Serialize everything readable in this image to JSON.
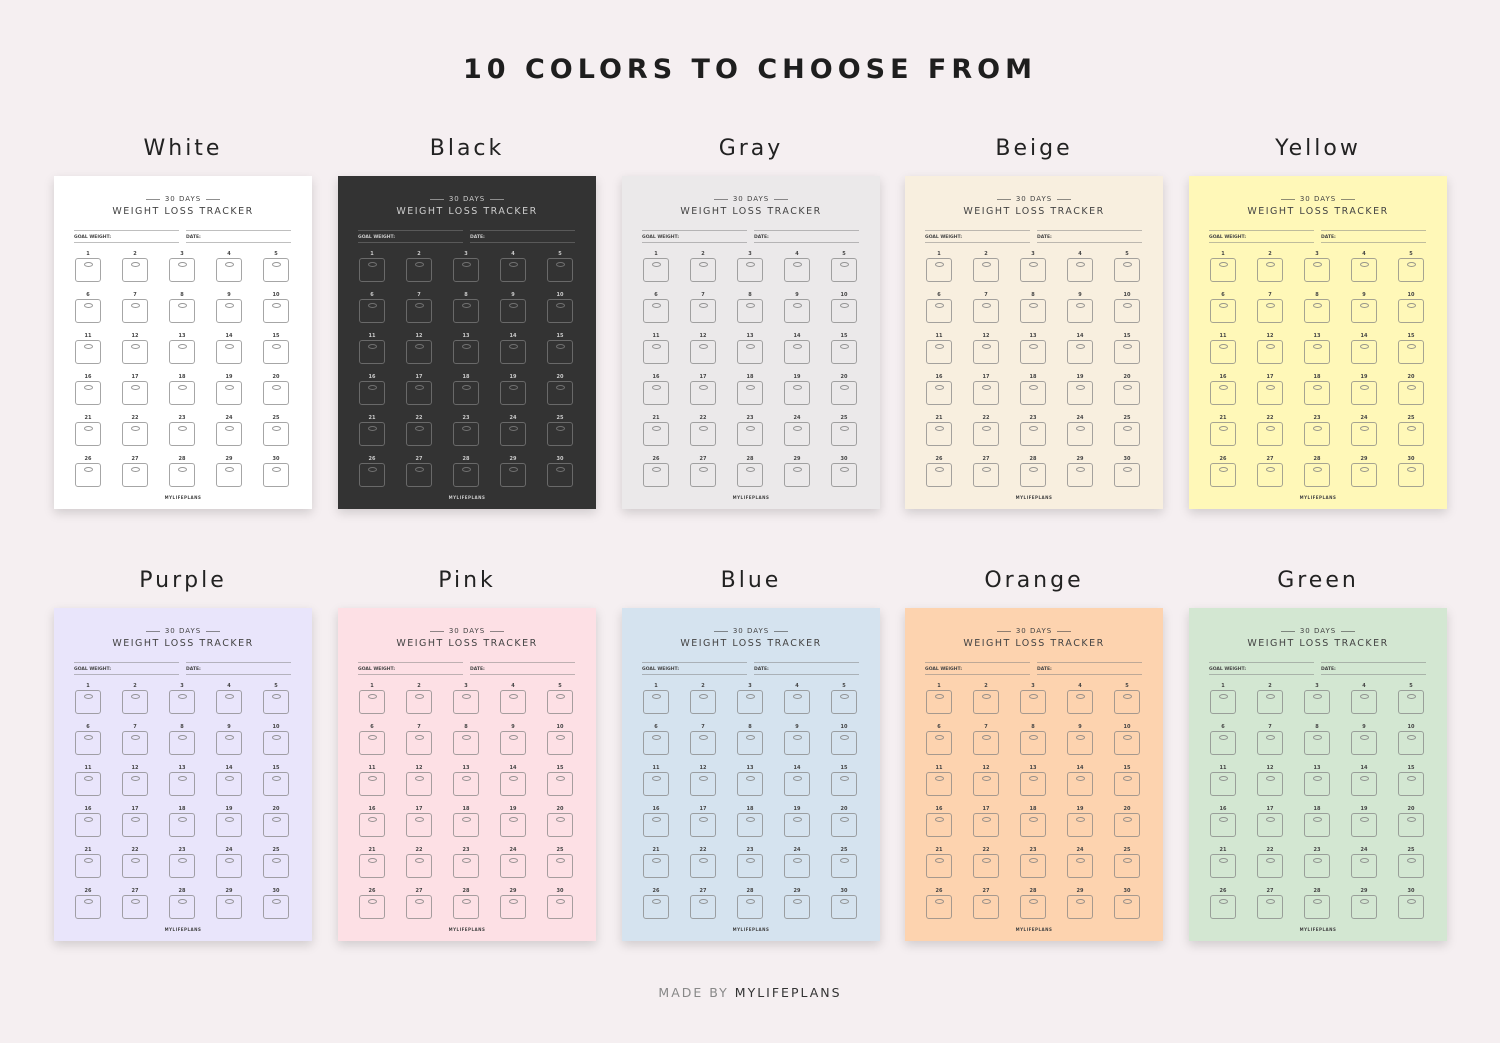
{
  "title": "10 COLORS TO CHOOSE FROM",
  "tracker": {
    "subtitle": "30 DAYS",
    "title": "WEIGHT LOSS TRACKER",
    "goal_label": "GOAL WEIGHT:",
    "date_label": "DATE:",
    "footer": "MYLIFEPLANS",
    "days": [
      "1",
      "2",
      "3",
      "4",
      "5",
      "6",
      "7",
      "8",
      "9",
      "10",
      "11",
      "12",
      "13",
      "14",
      "15",
      "16",
      "17",
      "18",
      "19",
      "20",
      "21",
      "22",
      "23",
      "24",
      "25",
      "26",
      "27",
      "28",
      "29",
      "30"
    ],
    "day_icon": "scale-icon"
  },
  "variants": [
    {
      "name": "White",
      "color": "#ffffff"
    },
    {
      "name": "Black",
      "color": "#333333"
    },
    {
      "name": "Gray",
      "color": "#ebe9ea"
    },
    {
      "name": "Beige",
      "color": "#f8efdf"
    },
    {
      "name": "Yellow",
      "color": "#fff8b8"
    },
    {
      "name": "Purple",
      "color": "#e9e5fb"
    },
    {
      "name": "Pink",
      "color": "#fde0e5"
    },
    {
      "name": "Blue",
      "color": "#d5e3ef"
    },
    {
      "name": "Orange",
      "color": "#fdd3af"
    },
    {
      "name": "Green",
      "color": "#d3e7d2"
    }
  ],
  "credit": {
    "prefix": "MADE BY",
    "brand": "MYLIFEPLANS"
  }
}
